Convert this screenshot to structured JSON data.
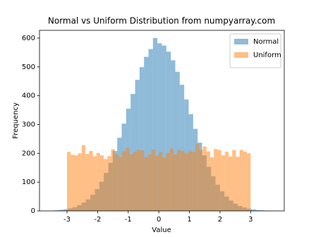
{
  "chart_data": {
    "type": "histogram",
    "title": "Normal vs Uniform Distribution from numpyarray.com",
    "x_label": "Value",
    "y_label": "Frequency",
    "xlim": [
      -3.9,
      4.1
    ],
    "ylim": [
      0,
      627
    ],
    "xticks": [
      -3,
      -2,
      -1,
      0,
      1,
      2,
      3
    ],
    "yticks": [
      0,
      100,
      200,
      300,
      400,
      500,
      600
    ],
    "legend": "upper right",
    "alpha": 0.5,
    "series": [
      {
        "name": "Normal",
        "color": "#1f77b4",
        "bins": [
          -3.55,
          -3.404,
          -3.258,
          -3.112,
          -2.966,
          -2.82,
          -2.674,
          -2.528,
          -2.382,
          -2.236,
          -2.09,
          -1.944,
          -1.798,
          -1.652,
          -1.506,
          -1.36,
          -1.214,
          -1.068,
          -0.922,
          -0.776,
          -0.63,
          -0.484,
          -0.338,
          -0.192,
          -0.046,
          0.1,
          0.246,
          0.392,
          0.538,
          0.684,
          0.83,
          0.976,
          1.122,
          1.268,
          1.414,
          1.56,
          1.706,
          1.852,
          1.998,
          2.144,
          2.29,
          2.436,
          2.582,
          2.728,
          2.874,
          3.02,
          3.166,
          3.312,
          3.458,
          3.604,
          3.75
        ],
        "values": [
          1,
          2,
          4,
          6,
          9,
          13,
          20,
          29,
          40,
          56,
          76,
          101,
          132,
          167,
          208,
          254,
          303,
          355,
          406,
          455,
          499,
          535,
          562,
          600,
          582,
          574,
          553,
          523,
          483,
          438,
          387,
          336,
          285,
          237,
          193,
          153,
          120,
          91,
          68,
          50,
          36,
          25,
          17,
          12,
          8,
          5,
          3,
          2,
          1,
          1
        ]
      },
      {
        "name": "Uniform",
        "color": "#ff7f0e",
        "bins": [
          -3,
          -2.88,
          -2.76,
          -2.64,
          -2.52,
          -2.4,
          -2.28,
          -2.16,
          -2.04,
          -1.92,
          -1.8,
          -1.68,
          -1.56,
          -1.44,
          -1.32,
          -1.2,
          -1.08,
          -0.96,
          -0.84,
          -0.72,
          -0.6,
          -0.48,
          -0.36,
          -0.24,
          -0.12,
          0,
          0.12,
          0.24,
          0.36,
          0.48,
          0.6,
          0.72,
          0.84,
          0.96,
          1.08,
          1.2,
          1.32,
          1.44,
          1.56,
          1.68,
          1.8,
          1.92,
          2.04,
          2.16,
          2.28,
          2.4,
          2.52,
          2.64,
          2.76,
          2.88,
          3
        ],
        "values": [
          205,
          195,
          193,
          200,
          228,
          198,
          208,
          190,
          201,
          193,
          180,
          190,
          214,
          197,
          187,
          207,
          218,
          196,
          205,
          213,
          210,
          187,
          196,
          213,
          192,
          204,
          185,
          201,
          217,
          196,
          212,
          208,
          198,
          207,
          205,
          232,
          212,
          224,
          207,
          186,
          215,
          212,
          193,
          205,
          189,
          211,
          188,
          212,
          206,
          200
        ]
      }
    ]
  }
}
